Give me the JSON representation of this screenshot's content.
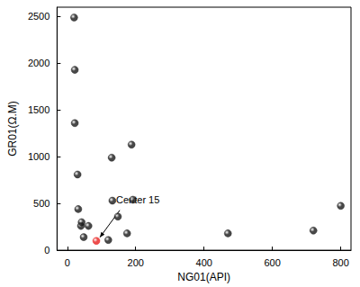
{
  "chart_data": {
    "type": "scatter",
    "x_label": "NG01(API)",
    "y_label": "GR01(Ω.M)",
    "x": [
      20,
      22,
      22,
      30,
      32,
      40,
      42,
      48,
      62,
      85,
      120,
      130,
      132,
      148,
      175,
      188,
      192,
      470,
      720,
      800
    ],
    "values": [
      2490,
      1930,
      1360,
      810,
      440,
      260,
      300,
      140,
      260,
      100,
      110,
      990,
      530,
      360,
      180,
      1130,
      540,
      180,
      210,
      475
    ],
    "colors": [
      "#1a1a1a",
      "#1a1a1a",
      "#1a1a1a",
      "#1a1a1a",
      "#1a1a1a",
      "#1a1a1a",
      "#1a1a1a",
      "#1a1a1a",
      "#1a1a1a",
      "#e8201f",
      "#1a1a1a",
      "#1a1a1a",
      "#1a1a1a",
      "#1a1a1a",
      "#1a1a1a",
      "#1a1a1a",
      "#1a1a1a",
      "#1a1a1a",
      "#1a1a1a",
      "#1a1a1a"
    ],
    "xlim": [
      -30,
      830
    ],
    "ylim": [
      0,
      2600
    ],
    "xticks": [
      0,
      200,
      400,
      600,
      800
    ],
    "yticks": [
      0,
      500,
      1000,
      1500,
      2000,
      2500
    ],
    "grid": false,
    "annotations": [
      {
        "text": "Center 15",
        "x": 85,
        "y": 100
      }
    ]
  }
}
